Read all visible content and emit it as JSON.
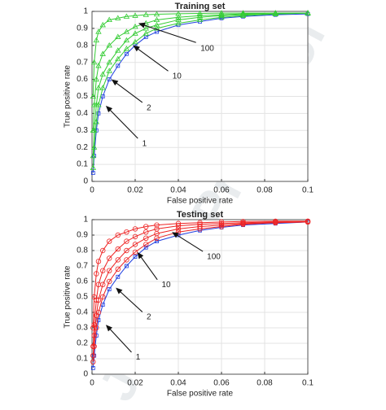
{
  "watermark": "Journal Pre-proof",
  "chart_data": [
    {
      "type": "line",
      "title": "Training set",
      "xlabel": "False positive rate",
      "ylabel": "True positive rate",
      "x": [
        0.0005,
        0.001,
        0.002,
        0.003,
        0.005,
        0.008,
        0.012,
        0.016,
        0.02,
        0.025,
        0.03,
        0.04,
        0.05,
        0.06,
        0.07,
        0.085,
        0.1
      ],
      "series": [
        {
          "color": "#1f3fe0",
          "marker": "square",
          "values": [
            0.05,
            0.15,
            0.3,
            0.4,
            0.5,
            0.6,
            0.68,
            0.75,
            0.8,
            0.85,
            0.88,
            0.92,
            0.94,
            0.96,
            0.97,
            0.98,
            0.985
          ]
        },
        {
          "color": "#33cc33",
          "marker": "triangle",
          "values": [
            0.08,
            0.2,
            0.35,
            0.45,
            0.55,
            0.65,
            0.72,
            0.78,
            0.82,
            0.87,
            0.9,
            0.93,
            0.95,
            0.965,
            0.975,
            0.985,
            0.99
          ]
        },
        {
          "color": "#33cc33",
          "marker": "triangle",
          "values": [
            0.15,
            0.3,
            0.45,
            0.55,
            0.63,
            0.7,
            0.77,
            0.83,
            0.87,
            0.9,
            0.92,
            0.95,
            0.965,
            0.975,
            0.98,
            0.985,
            0.99
          ]
        },
        {
          "color": "#33cc33",
          "marker": "triangle",
          "values": [
            0.3,
            0.45,
            0.6,
            0.68,
            0.75,
            0.8,
            0.85,
            0.88,
            0.91,
            0.93,
            0.95,
            0.965,
            0.975,
            0.98,
            0.985,
            0.99,
            0.99
          ]
        },
        {
          "color": "#33cc33",
          "marker": "triangle",
          "values": [
            0.5,
            0.7,
            0.83,
            0.88,
            0.92,
            0.95,
            0.96,
            0.97,
            0.975,
            0.98,
            0.983,
            0.986,
            0.988,
            0.99,
            0.99,
            0.99,
            0.99
          ]
        }
      ],
      "xlim": [
        0,
        0.1
      ],
      "ylim": [
        0,
        1
      ],
      "xticks": [
        0,
        0.02,
        0.04,
        0.06,
        0.08,
        0.1
      ],
      "yticks": [
        0,
        0.1,
        0.2,
        0.3,
        0.4,
        0.5,
        0.6,
        0.7,
        0.8,
        0.9,
        1
      ],
      "grid": true,
      "annotations": [
        {
          "text": "1",
          "xy": [
            0.0064,
            0.445
          ],
          "xytext": [
            0.021,
            0.26
          ]
        },
        {
          "text": "2",
          "xy": [
            0.009,
            0.6
          ],
          "xytext": [
            0.023,
            0.47
          ]
        },
        {
          "text": "10",
          "xy": [
            0.019,
            0.8
          ],
          "xytext": [
            0.035,
            0.655
          ]
        },
        {
          "text": "100",
          "xy": [
            0.0215,
            0.93
          ],
          "xytext": [
            0.048,
            0.82
          ]
        }
      ]
    },
    {
      "type": "line",
      "title": "Testing set",
      "xlabel": "False positive rate",
      "ylabel": "True positive rate",
      "x": [
        0.0005,
        0.001,
        0.002,
        0.003,
        0.005,
        0.008,
        0.012,
        0.016,
        0.02,
        0.025,
        0.03,
        0.04,
        0.05,
        0.06,
        0.07,
        0.085,
        0.1
      ],
      "series": [
        {
          "color": "#1f3fe0",
          "marker": "square",
          "values": [
            0.04,
            0.12,
            0.25,
            0.35,
            0.45,
            0.55,
            0.63,
            0.7,
            0.76,
            0.82,
            0.86,
            0.9,
            0.93,
            0.95,
            0.965,
            0.975,
            0.985
          ]
        },
        {
          "color": "#ee2222",
          "marker": "circle",
          "values": [
            0.08,
            0.18,
            0.3,
            0.4,
            0.5,
            0.6,
            0.68,
            0.74,
            0.79,
            0.84,
            0.88,
            0.92,
            0.94,
            0.955,
            0.97,
            0.98,
            0.985
          ]
        },
        {
          "color": "#ee2222",
          "marker": "circle",
          "values": [
            0.12,
            0.25,
            0.38,
            0.48,
            0.58,
            0.67,
            0.74,
            0.8,
            0.84,
            0.88,
            0.91,
            0.94,
            0.955,
            0.965,
            0.975,
            0.98,
            0.985
          ]
        },
        {
          "color": "#ee2222",
          "marker": "circle",
          "values": [
            0.18,
            0.32,
            0.48,
            0.58,
            0.67,
            0.75,
            0.81,
            0.86,
            0.89,
            0.92,
            0.94,
            0.96,
            0.97,
            0.975,
            0.98,
            0.985,
            0.99
          ]
        },
        {
          "color": "#ee2222",
          "marker": "circle",
          "values": [
            0.3,
            0.5,
            0.65,
            0.73,
            0.8,
            0.86,
            0.9,
            0.92,
            0.94,
            0.955,
            0.965,
            0.975,
            0.98,
            0.985,
            0.988,
            0.99,
            0.99
          ]
        }
      ],
      "xlim": [
        0,
        0.1
      ],
      "ylim": [
        0,
        1
      ],
      "xticks": [
        0,
        0.02,
        0.04,
        0.06,
        0.08,
        0.1
      ],
      "yticks": [
        0,
        0.1,
        0.2,
        0.3,
        0.4,
        0.5,
        0.6,
        0.7,
        0.8,
        0.9,
        1
      ],
      "grid": true,
      "annotations": [
        {
          "text": "1",
          "xy": [
            0.0064,
            0.32
          ],
          "xytext": [
            0.018,
            0.15
          ]
        },
        {
          "text": "2",
          "xy": [
            0.011,
            0.56
          ],
          "xytext": [
            0.023,
            0.41
          ]
        },
        {
          "text": "10",
          "xy": [
            0.021,
            0.79
          ],
          "xytext": [
            0.03,
            0.62
          ]
        },
        {
          "text": "100",
          "xy": [
            0.037,
            0.92
          ],
          "xytext": [
            0.051,
            0.8
          ]
        }
      ]
    }
  ]
}
